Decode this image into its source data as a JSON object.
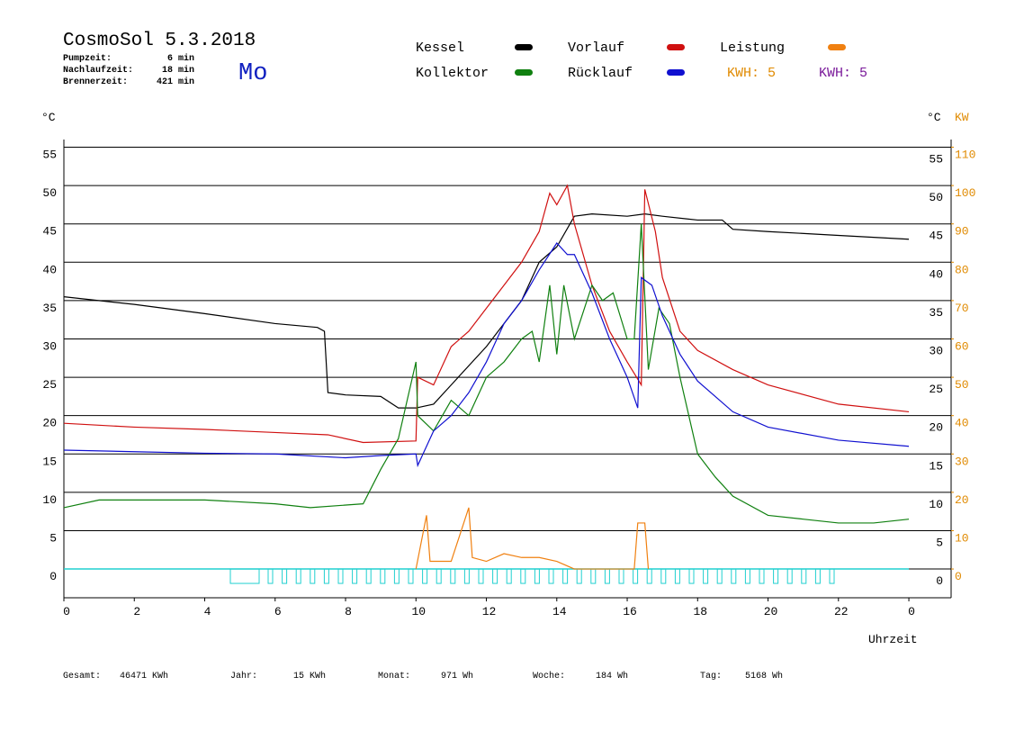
{
  "header": {
    "title": "CosmoSol 5.3.2018",
    "day": "Mo",
    "info": [
      [
        "Pumpzeit:",
        "6 min"
      ],
      [
        "Nachlaufzeit:",
        "18 min"
      ],
      [
        "Brennerzeit:",
        "421 min"
      ]
    ],
    "kwh_labels": [
      "KWH: 5",
      "KWH: 5"
    ],
    "unit_left": "°C",
    "unit_right": "°C",
    "unit_right2": "KW"
  },
  "chart_data": {
    "type": "line",
    "xlabel": "Uhrzeit",
    "xlim": [
      0,
      25.2
    ],
    "xticks": [
      0,
      2,
      4,
      6,
      8,
      10,
      12,
      14,
      16,
      18,
      20,
      22,
      {
        "value": 24,
        "label": "0"
      }
    ],
    "ylim": [
      -3.75,
      56
    ],
    "yticks": [
      0,
      5,
      10,
      15,
      20,
      25,
      30,
      35,
      40,
      45,
      50,
      55
    ],
    "y2lim": [
      -7.5,
      112
    ],
    "y2ticks": [
      0,
      10,
      20,
      30,
      40,
      50,
      60,
      70,
      80,
      90,
      100,
      110
    ],
    "grid": true,
    "series": [
      {
        "name": "Kessel",
        "color": "#000000",
        "x": [
          0,
          2,
          4,
          6,
          7.2,
          7.4,
          7.5,
          8,
          9,
          9.5,
          10,
          10.5,
          11,
          12,
          12.5,
          13,
          13.5,
          14,
          14.5,
          15,
          16,
          16.5,
          17,
          18,
          18.7,
          19,
          20,
          22,
          24
        ],
        "values": [
          35.5,
          34.5,
          33.3,
          32,
          31.5,
          31,
          23,
          22.7,
          22.5,
          21,
          21,
          21.5,
          24,
          29,
          32,
          35,
          40,
          42,
          46,
          46.3,
          46,
          46.3,
          46,
          45.5,
          45.5,
          44.3,
          44,
          43.5,
          43
        ]
      },
      {
        "name": "Vorlauf",
        "color": "#d01010",
        "x": [
          0,
          2,
          4,
          6,
          7.5,
          8.5,
          10,
          10.05,
          10.5,
          11,
          11.5,
          12,
          12.5,
          13,
          13.5,
          13.8,
          14,
          14.3,
          14.5,
          15,
          15.5,
          16,
          16.4,
          16.5,
          16.8,
          17,
          17.5,
          18,
          19,
          20,
          22,
          24
        ],
        "values": [
          19,
          18.5,
          18.2,
          17.8,
          17.5,
          16.5,
          16.7,
          25,
          24,
          29,
          31,
          34,
          37,
          40,
          44,
          49,
          47.5,
          50,
          45,
          37,
          31,
          27,
          24,
          49.5,
          44,
          38,
          31,
          28.5,
          26,
          24,
          21.5,
          20.5
        ]
      },
      {
        "name": "Leistung",
        "color": "#f08010",
        "axis": "y2",
        "x": [
          10,
          10.3,
          10.4,
          11,
          11.5,
          11.6,
          12,
          12.5,
          13,
          13.5,
          14,
          14.5,
          16.2,
          16.3,
          16.5,
          16.6
        ],
        "values": [
          0,
          14,
          2,
          2,
          16,
          3,
          2,
          4,
          3,
          3,
          2,
          0,
          0,
          12,
          12,
          0
        ]
      },
      {
        "name": "Kollektor",
        "color": "#108010",
        "x": [
          0,
          1,
          4,
          6,
          7,
          8.5,
          9,
          9.5,
          10,
          10.05,
          10.5,
          11,
          11.5,
          12,
          12.5,
          13,
          13.3,
          13.5,
          13.8,
          14,
          14.2,
          14.5,
          15,
          15.3,
          15.6,
          16,
          16.2,
          16.4,
          16.6,
          16.9,
          17.2,
          17.5,
          18,
          18.5,
          19,
          20,
          21,
          22,
          23,
          24
        ],
        "values": [
          8,
          9,
          9,
          8.5,
          8,
          8.5,
          13,
          17,
          27,
          20,
          18,
          22,
          20,
          25,
          27,
          30,
          31,
          27,
          37,
          28,
          37,
          30,
          37,
          35,
          36,
          30,
          30,
          45,
          26,
          34,
          32,
          25,
          15,
          12,
          9.5,
          7,
          6.5,
          6,
          6,
          6.5
        ]
      },
      {
        "name": "Rücklauf",
        "color": "#1010d0",
        "x": [
          0,
          2,
          4,
          6,
          8,
          9,
          10,
          10.05,
          10.3,
          10.5,
          11,
          11.5,
          12,
          12.5,
          13,
          13.5,
          14,
          14.3,
          14.5,
          15,
          15.5,
          16,
          16.3,
          16.4,
          16.7,
          17,
          17.5,
          18,
          19,
          20,
          22,
          24
        ],
        "values": [
          15.5,
          15.3,
          15.1,
          15,
          14.5,
          14.8,
          15,
          13.5,
          16,
          18,
          20,
          23,
          27,
          32,
          35,
          39,
          42.5,
          41,
          41,
          36,
          30,
          25,
          21,
          38,
          37,
          33,
          28,
          24.5,
          20.5,
          18.5,
          16.8,
          16
        ]
      }
    ]
  },
  "footer": [
    [
      "Gesamt:",
      "46471 KWh"
    ],
    [
      "Jahr:",
      "15 KWh"
    ],
    [
      "Monat:",
      "971 Wh"
    ],
    [
      "Woche:",
      "184 Wh"
    ],
    [
      "Tag:",
      "5168 Wh"
    ]
  ]
}
